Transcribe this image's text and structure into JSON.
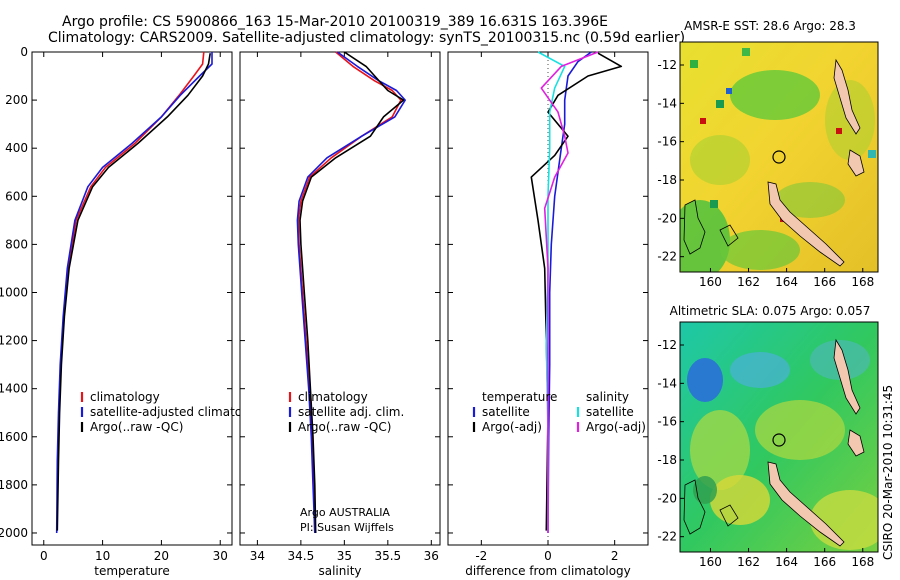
{
  "header": {
    "line1": "Argo profile: CS 5900866_163 15-Mar-2010 20100319_389 16.631S 163.396E",
    "line2": "Climatology: CARS2009. Satellite-adjusted climatology: synTS_20100315.nc (0.59d earlier)"
  },
  "credits": {
    "agency": "Argo AUSTRALIA",
    "pi": "PI: Susan Wijffels",
    "stamp": "CSIRO 20-Mar-2010 10:31:45"
  },
  "colors": {
    "climatology": "#e8141c",
    "satellite": "#1a1ad8",
    "argo": "#000000",
    "salinity_sat": "#19e0e0",
    "salinity_argo": "#e020e0"
  },
  "chart_data": [
    {
      "id": "temperature",
      "type": "line",
      "xlabel": "temperature",
      "ylabel": "",
      "xlim": [
        -2,
        32
      ],
      "ylim": [
        2050,
        0
      ],
      "xticks": [
        "0",
        "10",
        "20",
        "30"
      ],
      "xtick_values": [
        0,
        10,
        20,
        30
      ],
      "yticks": [
        "0",
        "200",
        "400",
        "600",
        "800",
        "1000",
        "1200",
        "1400",
        "1600",
        "1800",
        "2000"
      ],
      "ytick_values": [
        0,
        200,
        400,
        600,
        800,
        1000,
        1200,
        1400,
        1600,
        1800,
        2000
      ],
      "legend": [
        "climatology",
        "satellite-adjusted climatology",
        "Argo(..raw -QC)"
      ],
      "series": [
        {
          "name": "climatology",
          "x": [
            27.2,
            27.0,
            25.5,
            23.0,
            20.0,
            15.5,
            10.5,
            8.0,
            5.5,
            4.2,
            3.4,
            2.9,
            2.6,
            2.4,
            2.3
          ],
          "y": [
            0,
            50,
            100,
            180,
            270,
            380,
            480,
            560,
            700,
            900,
            1100,
            1300,
            1500,
            1700,
            1900
          ]
        },
        {
          "name": "satellite",
          "x": [
            28.6,
            28.6,
            26.5,
            23.2,
            20.0,
            15.0,
            10.0,
            7.5,
            5.3,
            4.0,
            3.3,
            2.8,
            2.5,
            2.3,
            2.2
          ],
          "y": [
            0,
            50,
            100,
            180,
            270,
            380,
            480,
            560,
            700,
            900,
            1100,
            1300,
            1500,
            1700,
            2000
          ]
        },
        {
          "name": "argo",
          "x": [
            28.3,
            28.0,
            27.0,
            24.5,
            21.0,
            16.0,
            11.0,
            8.3,
            5.8,
            4.3,
            3.5,
            3.0,
            2.7,
            2.5,
            2.3
          ],
          "y": [
            5,
            50,
            100,
            180,
            270,
            380,
            480,
            560,
            700,
            900,
            1100,
            1300,
            1500,
            1700,
            1990
          ]
        }
      ]
    },
    {
      "id": "salinity",
      "type": "line",
      "xlabel": "salinity",
      "ylabel": "",
      "xlim": [
        33.8,
        36.1
      ],
      "ylim": [
        2050,
        0
      ],
      "xticks": [
        "34",
        "34.5",
        "35",
        "35.5",
        "36"
      ],
      "xtick_values": [
        34,
        34.5,
        35,
        35.5,
        36
      ],
      "legend": [
        "climatology",
        "satellite adj. clim.",
        "Argo(..raw -QC)"
      ],
      "series": [
        {
          "name": "climatology",
          "x": [
            34.9,
            35.1,
            35.35,
            35.55,
            35.65,
            35.55,
            35.2,
            34.85,
            34.6,
            34.5,
            34.47,
            34.48,
            34.52,
            34.56,
            34.6,
            34.63,
            34.65,
            34.66
          ],
          "y": [
            0,
            60,
            120,
            160,
            200,
            270,
            350,
            440,
            520,
            620,
            700,
            800,
            1000,
            1200,
            1400,
            1600,
            1800,
            2000
          ]
        },
        {
          "name": "satellite",
          "x": [
            34.92,
            35.15,
            35.4,
            35.6,
            35.7,
            35.58,
            35.2,
            34.8,
            34.58,
            34.48,
            34.46,
            34.47,
            34.51,
            34.55,
            34.59,
            34.62,
            34.64,
            34.66
          ],
          "y": [
            0,
            60,
            120,
            160,
            200,
            270,
            350,
            440,
            520,
            620,
            700,
            800,
            1000,
            1200,
            1400,
            1600,
            1800,
            2000
          ]
        },
        {
          "name": "argo",
          "x": [
            35.0,
            35.25,
            35.4,
            35.5,
            35.68,
            35.45,
            35.3,
            34.9,
            34.62,
            34.52,
            34.49,
            34.5,
            34.54,
            34.58,
            34.61,
            34.64,
            34.66,
            34.67
          ],
          "y": [
            0,
            60,
            120,
            160,
            200,
            270,
            350,
            440,
            520,
            620,
            700,
            800,
            1000,
            1200,
            1400,
            1600,
            1800,
            2000
          ]
        }
      ]
    },
    {
      "id": "difference",
      "type": "line",
      "xlabel": "difference from climatology",
      "ylabel": "",
      "xlim": [
        -3,
        3
      ],
      "ylim": [
        2050,
        0
      ],
      "xticks": [
        "-2",
        "0",
        "2"
      ],
      "xtick_values": [
        -2,
        0,
        2
      ],
      "legend_left": [
        "temperature",
        "satellite",
        "Argo(-adj)"
      ],
      "legend_right": [
        "salinity",
        "satellite",
        "Argo(-adj)"
      ],
      "series": [
        {
          "name": "temperature satellite",
          "x": [
            1.3,
            0.9,
            0.6,
            0.5,
            0.5,
            0.4,
            0.3,
            0.2,
            0.1,
            0.05,
            0.05,
            0.02,
            0.0
          ],
          "y": [
            0,
            40,
            100,
            200,
            300,
            400,
            500,
            600,
            800,
            1000,
            1300,
            1600,
            2000
          ]
        },
        {
          "name": "temperature argo",
          "x": [
            1.5,
            2.2,
            1.2,
            0.3,
            0.0,
            0.6,
            0.2,
            -0.5,
            -0.3,
            -0.1,
            -0.05,
            0.0,
            -0.05
          ],
          "y": [
            5,
            60,
            100,
            180,
            250,
            350,
            430,
            520,
            700,
            900,
            1200,
            1500,
            1990
          ]
        },
        {
          "name": "salinity satellite",
          "x": [
            -0.3,
            0.5,
            0.2,
            0.05,
            0.05,
            0.0,
            0.0,
            -0.05,
            0.0,
            0.0
          ],
          "y": [
            0,
            60,
            150,
            250,
            400,
            600,
            900,
            1200,
            1600,
            2000
          ]
        },
        {
          "name": "salinity argo",
          "x": [
            1.5,
            0.4,
            -0.2,
            0.3,
            0.5,
            0.6,
            0.2,
            -0.1,
            0.0,
            0.0,
            0.0
          ],
          "y": [
            0,
            60,
            150,
            250,
            350,
            420,
            520,
            650,
            900,
            1400,
            2000
          ]
        }
      ]
    },
    {
      "id": "sst_map",
      "type": "heatmap",
      "title": "AMSR-E SST: 28.6 Argo: 28.3",
      "xticks": [
        "160",
        "162",
        "164",
        "166",
        "168"
      ],
      "xtick_values": [
        160,
        162,
        164,
        166,
        168
      ],
      "yticks": [
        "-12",
        "-14",
        "-16",
        "-18",
        "-20",
        "-22"
      ],
      "ytick_values": [
        -12,
        -14,
        -16,
        -18,
        -20,
        -22
      ],
      "xlim": [
        158.4,
        168.8
      ],
      "ylim": [
        -22.8,
        -10.8
      ],
      "argo_position": [
        163.396,
        -16.631
      ]
    },
    {
      "id": "sla_map",
      "type": "heatmap",
      "title": "Altimetric SLA: 0.075 Argo: 0.057",
      "xticks": [
        "160",
        "162",
        "164",
        "166",
        "168"
      ],
      "xtick_values": [
        160,
        162,
        164,
        166,
        168
      ],
      "yticks": [
        "-12",
        "-14",
        "-16",
        "-18",
        "-20",
        "-22"
      ],
      "ytick_values": [
        -12,
        -14,
        -16,
        -18,
        -20,
        -22
      ],
      "xlim": [
        158.4,
        168.8
      ],
      "ylim": [
        -22.8,
        -10.8
      ],
      "argo_position": [
        163.396,
        -16.631
      ]
    }
  ]
}
